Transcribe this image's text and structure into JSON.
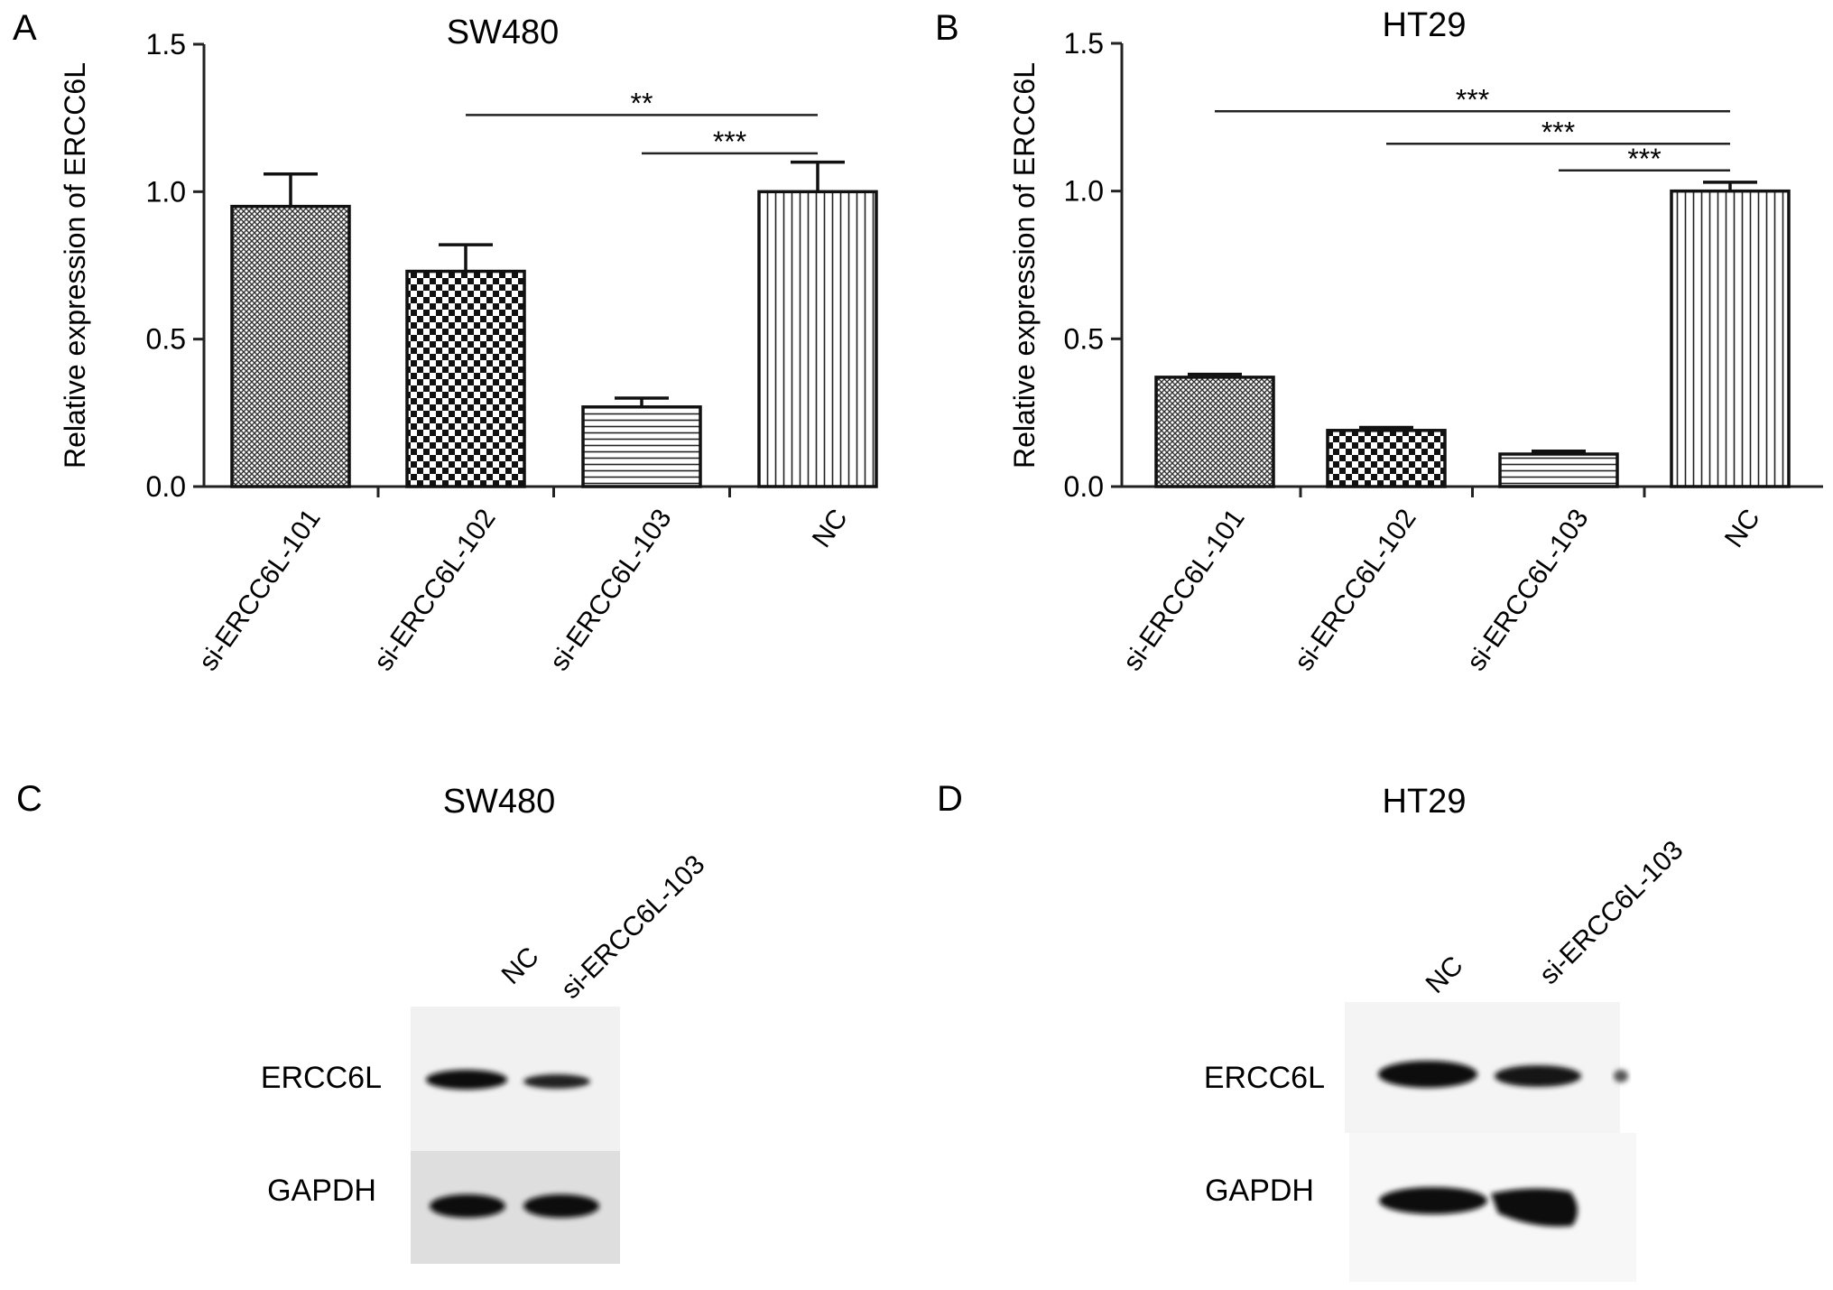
{
  "panels": {
    "A": {
      "letter": "A",
      "title": "SW480"
    },
    "B": {
      "letter": "B",
      "title": "HT29"
    },
    "C": {
      "letter": "C",
      "title": "SW480",
      "lanes": [
        "NC",
        "si-ERCC6L-103"
      ],
      "rows": [
        "ERCC6L",
        "GAPDH"
      ]
    },
    "D": {
      "letter": "D",
      "title": "HT29",
      "lanes": [
        "NC",
        "si-ERCC6L-103"
      ],
      "rows": [
        "ERCC6L",
        "GAPDH"
      ]
    }
  },
  "chart_data": [
    {
      "type": "bar",
      "title": "SW480",
      "ylabel": "Relative expression of ERCC6L",
      "ylim": [
        0,
        1.5
      ],
      "yticks": [
        "0.0",
        "0.5",
        "1.0",
        "1.5"
      ],
      "categories": [
        "si-ERCC6L-101",
        "si-ERCC6L-102",
        "si-ERCC6L-103",
        "NC"
      ],
      "values": [
        0.95,
        0.73,
        0.27,
        1.0
      ],
      "errors": [
        0.11,
        0.09,
        0.03,
        0.1
      ],
      "patterns": [
        "fine-crosshatch",
        "checker",
        "horizontal-lines",
        "vertical-lines"
      ],
      "significance": [
        {
          "from": "si-ERCC6L-102",
          "to": "NC",
          "label": "**",
          "y": 1.26
        },
        {
          "from": "si-ERCC6L-103",
          "to": "NC",
          "label": "***",
          "y": 1.13
        }
      ]
    },
    {
      "type": "bar",
      "title": "HT29",
      "ylabel": "Relative expression of ERCC6L",
      "ylim": [
        0,
        1.5
      ],
      "yticks": [
        "0.0",
        "0.5",
        "1.0",
        "1.5"
      ],
      "categories": [
        "si-ERCC6L-101",
        "si-ERCC6L-102",
        "si-ERCC6L-103",
        "NC"
      ],
      "values": [
        0.37,
        0.19,
        0.11,
        1.0
      ],
      "errors": [
        0.01,
        0.01,
        0.01,
        0.03
      ],
      "patterns": [
        "fine-crosshatch",
        "checker",
        "horizontal-lines",
        "vertical-lines"
      ],
      "significance": [
        {
          "from": "si-ERCC6L-101",
          "to": "NC",
          "label": "***",
          "y": 1.27
        },
        {
          "from": "si-ERCC6L-102",
          "to": "NC",
          "label": "***",
          "y": 1.16
        },
        {
          "from": "si-ERCC6L-103",
          "to": "NC",
          "label": "***",
          "y": 1.07
        }
      ]
    }
  ]
}
